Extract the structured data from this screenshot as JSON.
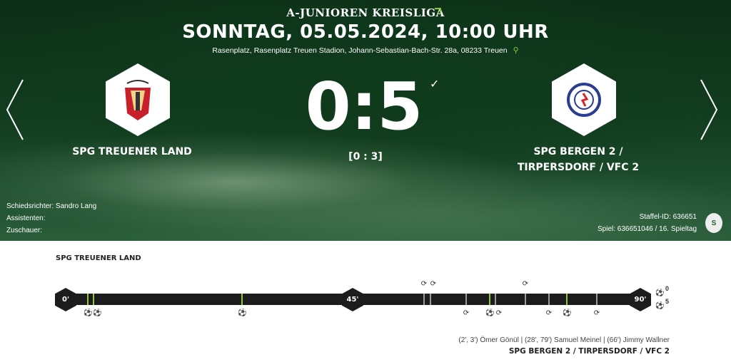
{
  "header": {
    "league": "A-JUNIOREN KREISLIGA",
    "datetime": "SONNTAG, 05.05.2024, 10:00 UHR",
    "venue": "Rasenplatz, Rasenplatz Treuen Stadion, Johann-Sebastian-Bach-Str. 28a, 08233 Treuen",
    "pin_icon": "map-pin-icon"
  },
  "home": {
    "name": "SPG TREUENER LAND"
  },
  "away": {
    "name_line1": "SPG BERGEN 2 /",
    "name_line2": "TIRPERSDORF / VFC 2",
    "name_full": "SPG BERGEN 2 / TIRPERSDORF / VFC 2"
  },
  "score": {
    "final": "0:5",
    "halftime": "[0 : 3]"
  },
  "officials": {
    "referee": "Schiedsrichter: Sandro Lang",
    "assistants": "Assistenten:",
    "spectators": "Zuschauer:"
  },
  "meta": {
    "staffel": "Staffel-ID: 636651",
    "spiel": "Spiel: 636651046 / 16. Spieltag"
  },
  "timeline": {
    "home_label": "SPG TREUENER LAND",
    "markers": [
      "0'",
      "45'",
      "90'"
    ],
    "home_goals_count": "0",
    "away_goals_count": "5",
    "colors": {
      "goal": "#8fc63f",
      "substitution": "#9a9a9a",
      "bar": "#1c1c1c"
    },
    "events": [
      {
        "team": "away",
        "type": "goal",
        "minute": 2
      },
      {
        "team": "away",
        "type": "goal",
        "minute": 3
      },
      {
        "team": "away",
        "type": "goal",
        "minute": 28
      },
      {
        "team": "home",
        "type": "substitution",
        "minute": 55
      },
      {
        "team": "home",
        "type": "substitution",
        "minute": 56
      },
      {
        "team": "away",
        "type": "substitution",
        "minute": 62
      },
      {
        "team": "away",
        "type": "goal",
        "minute": 66
      },
      {
        "team": "away",
        "type": "substitution",
        "minute": 67
      },
      {
        "team": "home",
        "type": "substitution",
        "minute": 72
      },
      {
        "team": "away",
        "type": "substitution",
        "minute": 76
      },
      {
        "team": "away",
        "type": "goal",
        "minute": 79
      },
      {
        "team": "away",
        "type": "substitution",
        "minute": 84
      }
    ],
    "scorers": "(2', 3') Ömer Gönül | (28', 79') Samuel Meinel | (66') Jimmy Wallner"
  }
}
